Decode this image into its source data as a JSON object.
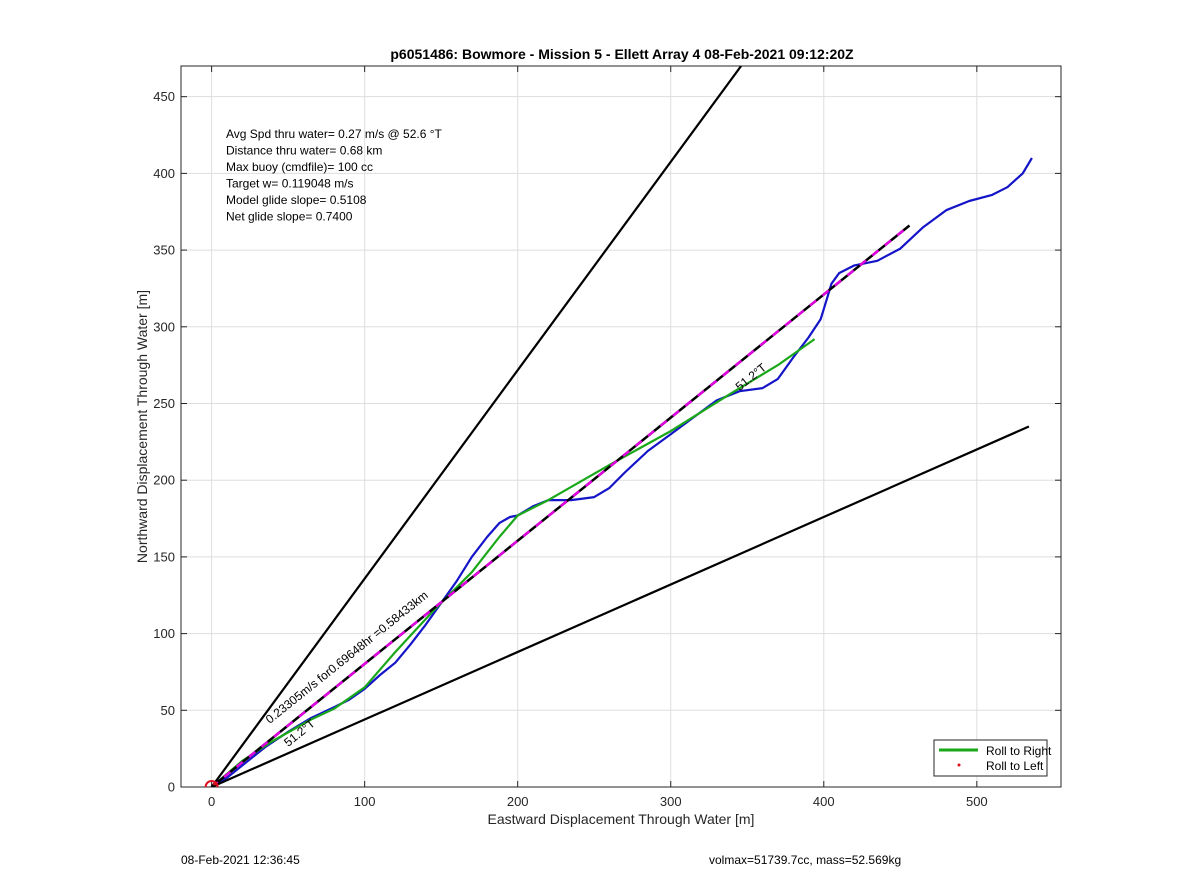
{
  "chart_data": {
    "type": "line",
    "title": "p6051486: Bowmore - Mission 5 - Ellett Array 4 08-Feb-2021 09:12:20Z",
    "xlabel": "Eastward Displacement Through Water [m]",
    "ylabel": "Northward Displacement Through Water [m]",
    "xlim": [
      -20,
      555
    ],
    "ylim": [
      0,
      470
    ],
    "x_ticks": [
      0,
      100,
      200,
      300,
      400,
      500
    ],
    "y_ticks": [
      0,
      50,
      100,
      150,
      200,
      250,
      300,
      350,
      400,
      450
    ],
    "grid": true,
    "legend": {
      "position": "bottom-right",
      "entries": [
        {
          "label": "Roll to Right",
          "color": "#1aa81a"
        },
        {
          "label": "Roll to Left",
          "color": "#e0101e"
        }
      ]
    },
    "info_text": [
      "Avg Spd thru water=  0.27 m/s @  52.6 °T",
      "Distance thru water=  0.68 km",
      "Max buoy (cmdfile)= 100 cc",
      "Target w= 0.119048 m/s",
      "Model glide slope= 0.5108",
      "Net glide slope= 0.7400"
    ],
    "annotations": [
      {
        "text": "0.23305m/s for0.69648hr =0.58433km",
        "x": 38,
        "y": 41,
        "angle_deg": 38.7
      },
      {
        "text": "51.2°T",
        "x": 50,
        "y": 26,
        "angle_deg": 38.8
      },
      {
        "text": "51.2°T",
        "x": 345,
        "y": 258,
        "angle_deg": 38.8
      }
    ],
    "series": [
      {
        "color": "#1414c8",
        "x": [
          0,
          10,
          20,
          35,
          50,
          65,
          80,
          90,
          100,
          110,
          120,
          130,
          140,
          150,
          160,
          170,
          180,
          188,
          195,
          200,
          210,
          220,
          235,
          250,
          260,
          270,
          285,
          300,
          315,
          330,
          345,
          360,
          370,
          380,
          390,
          398,
          402,
          405,
          410,
          420,
          435,
          450,
          465,
          480,
          495,
          510,
          520,
          530,
          536
        ],
        "y": [
          0,
          6,
          14,
          26,
          36,
          45,
          52,
          57,
          64,
          73,
          81,
          93,
          106,
          120,
          134,
          150,
          163,
          172,
          176,
          177,
          183,
          187,
          187,
          189,
          195,
          205,
          219,
          230,
          241,
          252,
          258,
          260,
          266,
          280,
          293,
          305,
          318,
          328,
          335,
          340,
          343,
          351,
          365,
          376,
          382,
          386,
          391,
          400,
          410
        ]
      },
      {
        "color": "#1aa81a",
        "x": [
          0,
          20,
          40,
          65,
          80,
          100,
          120,
          145,
          170,
          188,
          200,
          220,
          260,
          300,
          340,
          370,
          394
        ],
        "y": [
          0,
          17,
          30,
          44,
          51,
          65,
          88,
          115,
          140,
          163,
          177,
          187,
          210,
          232,
          257,
          275,
          292
        ]
      },
      {
        "color": "#e000e0",
        "style": "dashed",
        "x": [
          0,
          456
        ],
        "y": [
          0,
          366
        ]
      },
      {
        "color": "#000000",
        "x": [
          0,
          346
        ],
        "y": [
          0,
          470
        ]
      },
      {
        "color": "#000000",
        "x": [
          0,
          534
        ],
        "y": [
          0,
          235
        ]
      }
    ],
    "start_marker": {
      "x": 0,
      "y": 0,
      "color": "#e0101e"
    }
  },
  "footer": {
    "left": "08-Feb-2021 12:36:45",
    "right": "volmax=51739.7cc, mass=52.569kg"
  }
}
